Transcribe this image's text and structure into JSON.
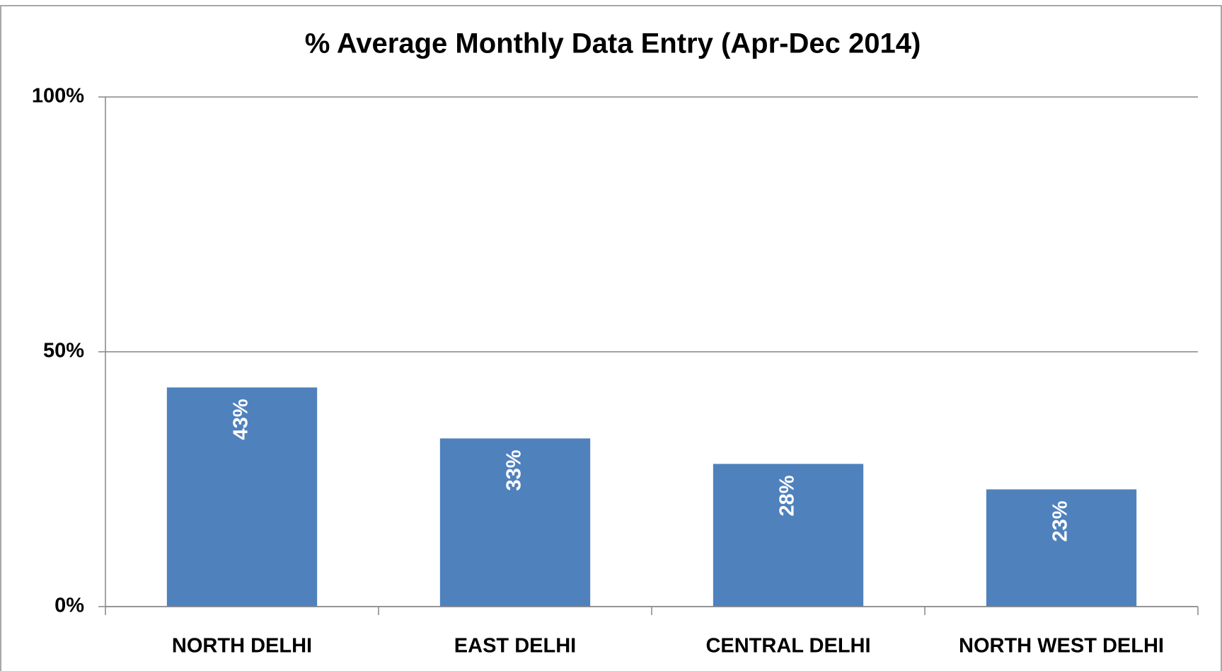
{
  "chart_data": {
    "type": "bar",
    "title": "% Average Monthly Data Entry (Apr-Dec 2014)",
    "categories": [
      "NORTH DELHI",
      "EAST DELHI",
      "CENTRAL DELHI",
      "NORTH WEST DELHI"
    ],
    "values": [
      43,
      33,
      28,
      23
    ],
    "value_labels": [
      "43%",
      "33%",
      "28%",
      "23%"
    ],
    "color": "#4f81bd",
    "ylim": [
      0,
      100
    ],
    "yticks": [
      {
        "value": 0,
        "label": "0%"
      },
      {
        "value": 50,
        "label": "50%"
      },
      {
        "value": 100,
        "label": "100%"
      }
    ],
    "grid": true
  }
}
